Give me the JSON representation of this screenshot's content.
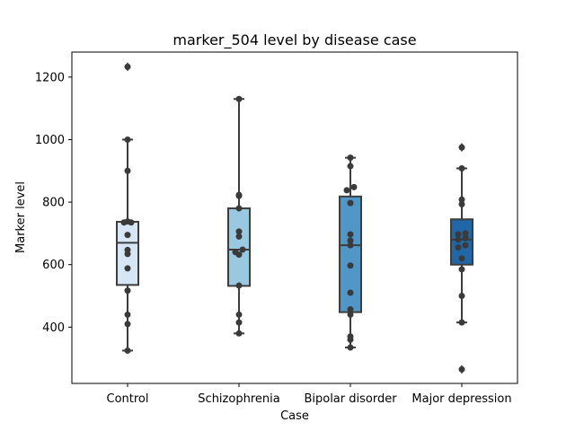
{
  "chart_data": {
    "type": "box",
    "title": "marker_504 level by disease case",
    "xlabel": "Case",
    "ylabel": "Marker level",
    "ylim": [
      220,
      1280
    ],
    "yticks": [
      400,
      600,
      800,
      1000,
      1200
    ],
    "grid": false,
    "legend": "none",
    "categories": [
      "Control",
      "Schizophrenia",
      "Bipolar disorder",
      "Major depression"
    ],
    "colors": [
      "#d6e6f4",
      "#9ac8e0",
      "#5097c8",
      "#2167a8"
    ],
    "boxes": [
      {
        "q1": 535,
        "median": 670,
        "q3": 737,
        "whisker_low": 325,
        "whisker_high": 1000,
        "fliers": [
          1233
        ]
      },
      {
        "q1": 532,
        "median": 648,
        "q3": 780,
        "whisker_low": 380,
        "whisker_high": 1130,
        "fliers": []
      },
      {
        "q1": 448,
        "median": 662,
        "q3": 818,
        "whisker_low": 335,
        "whisker_high": 942,
        "fliers": []
      },
      {
        "q1": 600,
        "median": 680,
        "q3": 745,
        "whisker_low": 415,
        "whisker_high": 908,
        "fliers": [
          975,
          265
        ]
      }
    ],
    "points": [
      [
        325,
        410,
        440,
        517,
        588,
        634,
        647,
        695,
        735,
        735,
        738,
        900,
        1000,
        1233
      ],
      [
        380,
        415,
        440,
        533,
        632,
        640,
        648,
        690,
        706,
        780,
        820,
        823,
        1130
      ],
      [
        335,
        360,
        370,
        440,
        457,
        510,
        597,
        662,
        677,
        697,
        797,
        838,
        848,
        915,
        942
      ],
      [
        265,
        415,
        500,
        585,
        620,
        655,
        662,
        680,
        685,
        697,
        700,
        793,
        808,
        908,
        975
      ]
    ]
  }
}
